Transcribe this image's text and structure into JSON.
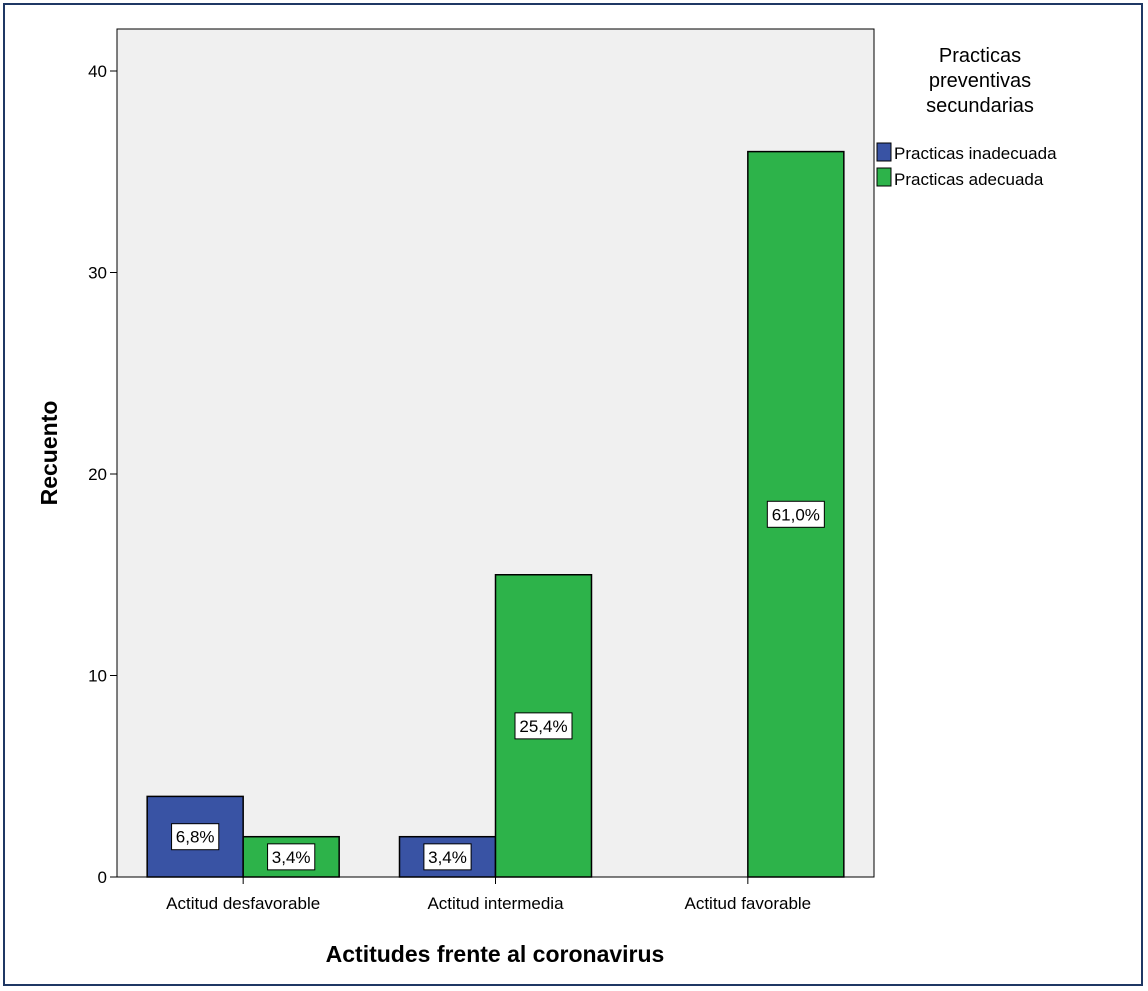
{
  "chart_data": {
    "type": "bar",
    "title": "",
    "xlabel": "Actitudes frente al coronavirus",
    "ylabel": "Recuento",
    "categories": [
      "Actitud desfavorable",
      "Actitud intermedia",
      "Actitud favorable"
    ],
    "series": [
      {
        "name": "Practicas inadecuada",
        "color": "#3953a4",
        "values": [
          4,
          2,
          0
        ],
        "labels": [
          "6,8%",
          "3,4%",
          ""
        ]
      },
      {
        "name": "Practicas adecuada",
        "color": "#2db34a",
        "values": [
          2,
          15,
          36
        ],
        "labels": [
          "3,4%",
          "25,4%",
          "61,0%"
        ]
      }
    ],
    "ylim": [
      0,
      42
    ],
    "yticks": [
      0,
      10,
      20,
      30,
      40
    ],
    "legend": {
      "title": [
        "Practicas",
        "preventivas",
        "secundarias"
      ],
      "position": "top-right, outside plot"
    },
    "grid": false,
    "plot_background": "#f0f0f0"
  }
}
